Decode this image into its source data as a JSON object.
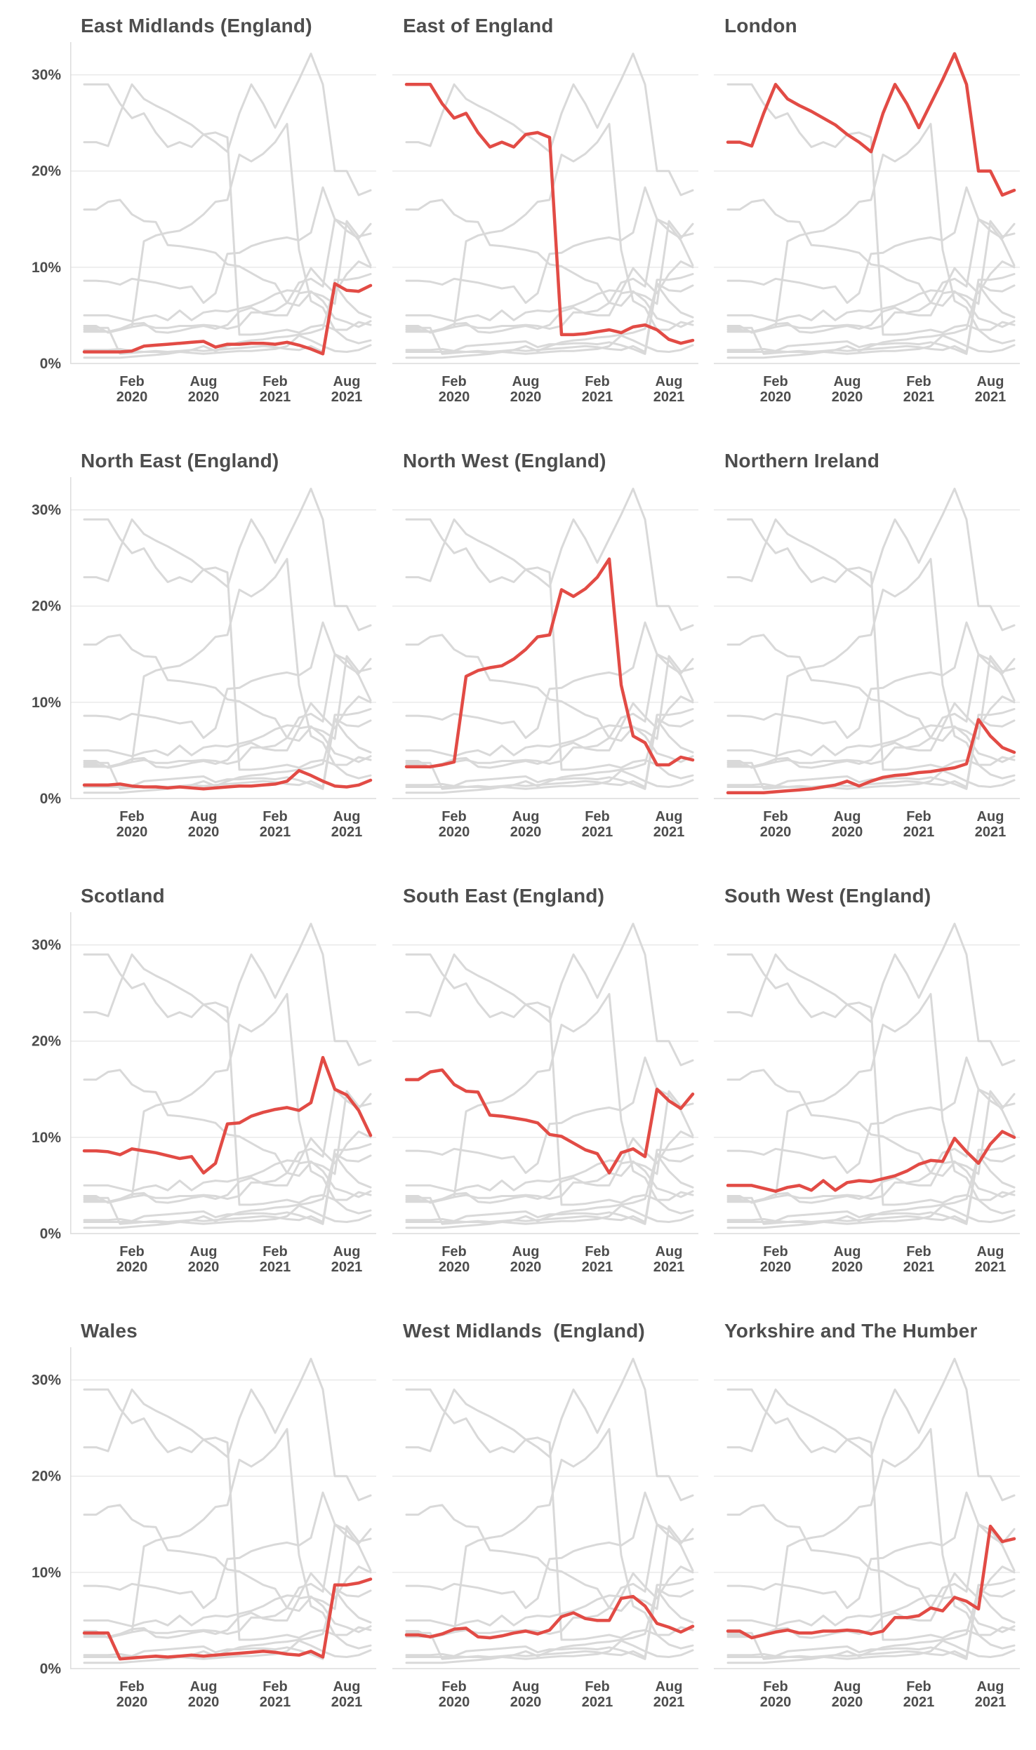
{
  "colors": {
    "highlight_line": "#e24b45",
    "context_line": "#d9d9d9",
    "gridline": "#e9e9e9",
    "axis_line": "#dcdcdc",
    "label_text": "#4d4d4d",
    "background": "#ffffff"
  },
  "chart_data": {
    "type": "line",
    "layout": "small-multiples 3 columns x 4 rows, one region highlighted in red per panel, all other regions shown in grey",
    "grid": "horizontal gridlines at 0%, 10%, 20%, 30%",
    "legend_position": "none",
    "x": [
      "2019-10",
      "2019-11",
      "2019-12",
      "2020-01",
      "2020-02",
      "2020-03",
      "2020-04",
      "2020-05",
      "2020-06",
      "2020-07",
      "2020-08",
      "2020-09",
      "2020-10",
      "2020-11",
      "2020-12",
      "2021-01",
      "2021-02",
      "2021-03",
      "2021-04",
      "2021-05",
      "2021-06",
      "2021-07",
      "2021-08",
      "2021-09",
      "2021-10"
    ],
    "x_tick_indices": [
      4,
      10,
      16,
      22
    ],
    "x_tick_labels": [
      [
        "Feb",
        "2020"
      ],
      [
        "Aug",
        "2020"
      ],
      [
        "Feb",
        "2021"
      ],
      [
        "Aug",
        "2021"
      ]
    ],
    "y_ticks": [
      0,
      10,
      20,
      30
    ],
    "y_tick_labels": [
      "0%",
      "10%",
      "20%",
      "30%"
    ],
    "ylabel": "",
    "xlabel": "",
    "ylim": [
      0,
      33.4
    ],
    "panels": [
      {
        "title": "East Midlands (England)"
      },
      {
        "title": "East of England"
      },
      {
        "title": "London"
      },
      {
        "title": "North East (England)"
      },
      {
        "title": "North West (England)"
      },
      {
        "title": "Northern Ireland"
      },
      {
        "title": "Scotland"
      },
      {
        "title": "South East (England)"
      },
      {
        "title": "South West (England)"
      },
      {
        "title": "Wales"
      },
      {
        "title": "West Midlands  (England)"
      },
      {
        "title": "Yorkshire and The Humber"
      }
    ],
    "series": [
      {
        "name": "East Midlands (England)",
        "values": [
          1.2,
          1.2,
          1.2,
          1.2,
          1.3,
          1.8,
          1.9,
          2.0,
          2.1,
          2.2,
          2.3,
          1.7,
          2.0,
          2.0,
          2.1,
          2.1,
          2.0,
          2.2,
          1.9,
          1.5,
          1.0,
          8.3,
          7.6,
          7.5,
          8.1
        ]
      },
      {
        "name": "East of England",
        "values": [
          29.0,
          29.0,
          29.0,
          27.0,
          25.5,
          26.0,
          24.0,
          22.5,
          23.0,
          22.5,
          23.8,
          24.0,
          23.5,
          3.0,
          3.0,
          3.1,
          3.3,
          3.5,
          3.2,
          3.8,
          4.0,
          3.5,
          2.5,
          2.1,
          2.4
        ]
      },
      {
        "name": "London",
        "values": [
          23.0,
          23.0,
          22.6,
          26.0,
          29.0,
          27.5,
          26.8,
          26.2,
          25.5,
          24.8,
          23.8,
          23.0,
          22.0,
          26.0,
          29.0,
          27.0,
          24.5,
          27.0,
          29.5,
          32.2,
          29.0,
          20.0,
          20.0,
          17.5,
          18.0
        ]
      },
      {
        "name": "North East (England)",
        "values": [
          1.4,
          1.4,
          1.4,
          1.5,
          1.3,
          1.2,
          1.2,
          1.1,
          1.2,
          1.1,
          1.0,
          1.1,
          1.2,
          1.3,
          1.3,
          1.4,
          1.5,
          1.8,
          2.9,
          2.4,
          1.8,
          1.3,
          1.2,
          1.4,
          1.9
        ]
      },
      {
        "name": "North West (England)",
        "values": [
          3.3,
          3.3,
          3.3,
          3.5,
          3.8,
          12.7,
          13.3,
          13.6,
          13.8,
          14.5,
          15.5,
          16.8,
          17.0,
          21.7,
          21.0,
          21.8,
          23.0,
          24.9,
          11.8,
          6.5,
          5.8,
          3.5,
          3.5,
          4.3,
          4.0
        ]
      },
      {
        "name": "Northern Ireland",
        "values": [
          0.6,
          0.6,
          0.6,
          0.6,
          0.7,
          0.8,
          0.9,
          1.0,
          1.2,
          1.4,
          1.8,
          1.3,
          1.8,
          2.2,
          2.4,
          2.5,
          2.7,
          2.8,
          3.0,
          3.2,
          3.6,
          8.2,
          6.5,
          5.3,
          4.8
        ]
      },
      {
        "name": "Scotland",
        "values": [
          8.6,
          8.6,
          8.5,
          8.2,
          8.8,
          8.6,
          8.4,
          8.1,
          7.8,
          8.0,
          6.3,
          7.3,
          11.4,
          11.5,
          12.2,
          12.6,
          12.9,
          13.1,
          12.8,
          13.6,
          18.3,
          15.0,
          14.4,
          12.8,
          10.2
        ]
      },
      {
        "name": "South East (England)",
        "values": [
          16.0,
          16.0,
          16.8,
          17.0,
          15.5,
          14.8,
          14.7,
          12.3,
          12.2,
          12.0,
          11.8,
          11.5,
          10.3,
          10.1,
          9.4,
          8.7,
          8.3,
          6.3,
          8.4,
          8.8,
          8.0,
          15.0,
          13.8,
          13.0,
          14.5
        ]
      },
      {
        "name": "South West (England)",
        "values": [
          5.0,
          5.0,
          5.0,
          4.7,
          4.4,
          4.8,
          5.0,
          4.5,
          5.5,
          4.5,
          5.3,
          5.5,
          5.4,
          5.7,
          6.0,
          6.5,
          7.2,
          7.6,
          7.5,
          9.9,
          8.5,
          7.3,
          9.3,
          10.6,
          10.0
        ]
      },
      {
        "name": "Wales",
        "values": [
          3.7,
          3.7,
          3.7,
          1.0,
          1.1,
          1.2,
          1.3,
          1.2,
          1.3,
          1.4,
          1.3,
          1.4,
          1.5,
          1.6,
          1.7,
          1.8,
          1.7,
          1.5,
          1.4,
          1.8,
          1.2,
          8.7,
          8.7,
          8.9,
          9.3
        ]
      },
      {
        "name": "West Midlands (England)",
        "values": [
          3.5,
          3.5,
          3.3,
          3.6,
          4.1,
          4.2,
          3.3,
          3.2,
          3.4,
          3.7,
          3.9,
          3.6,
          4.0,
          5.4,
          5.8,
          5.2,
          5.0,
          5.0,
          7.3,
          7.5,
          6.5,
          4.7,
          4.3,
          3.8,
          4.4
        ]
      },
      {
        "name": "Yorkshire and The Humber",
        "values": [
          3.9,
          3.9,
          3.2,
          3.5,
          3.8,
          4.0,
          3.7,
          3.7,
          3.9,
          3.9,
          4.0,
          3.9,
          3.6,
          3.9,
          5.3,
          5.3,
          5.5,
          6.3,
          6.0,
          7.4,
          7.0,
          6.2,
          14.8,
          13.2,
          13.5
        ]
      }
    ]
  }
}
